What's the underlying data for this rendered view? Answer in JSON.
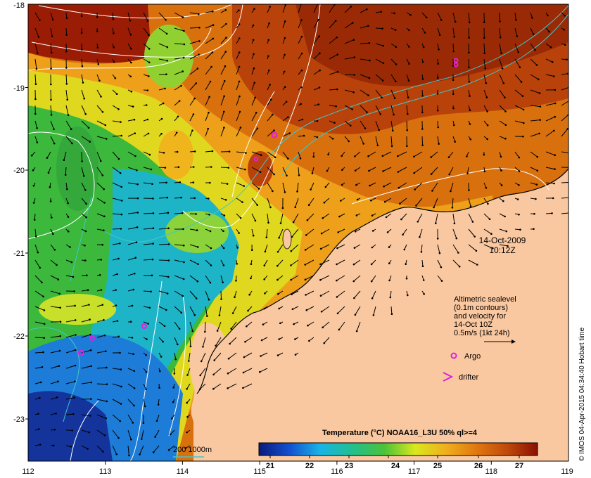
{
  "map": {
    "date": "14-Oct-2009",
    "time": "10:12Z",
    "credit": "© IMOS 04-Apr-2015 04:34:40 Hobart time",
    "x_ticks": [
      "112",
      "113",
      "114",
      "115",
      "116",
      "117",
      "118",
      "119"
    ],
    "y_ticks": [
      "-18",
      "-19",
      "-20",
      "-21",
      "-22",
      "-23"
    ],
    "altimetry_note": [
      "Altimetric sealevel",
      "(0.1m contours)",
      "and velocity for",
      "14-Oct 10Z",
      "0.5m/s (1kt 24h)"
    ],
    "argo_label": "Argo",
    "drifter_label": "drifter",
    "bathy_label": "200  1000m"
  },
  "colorbar": {
    "title": "Temperature (°C) NOAA16_L3U 50% ql>=4",
    "ticks": [
      "21",
      "22",
      "23",
      "24",
      "25",
      "26",
      "27"
    ],
    "colors": [
      "#0a1a7a",
      "#1450d0",
      "#18b4e6",
      "#22c08a",
      "#4ac23a",
      "#d8e81e",
      "#f0b01c",
      "#e07810",
      "#c04a0a",
      "#8a1004"
    ]
  },
  "colors": {
    "land": "#f9c8a0",
    "argo": "#e020e0",
    "contour": "#ffffff",
    "bathymetry": "#40c8c8",
    "vector": "#000000"
  }
}
